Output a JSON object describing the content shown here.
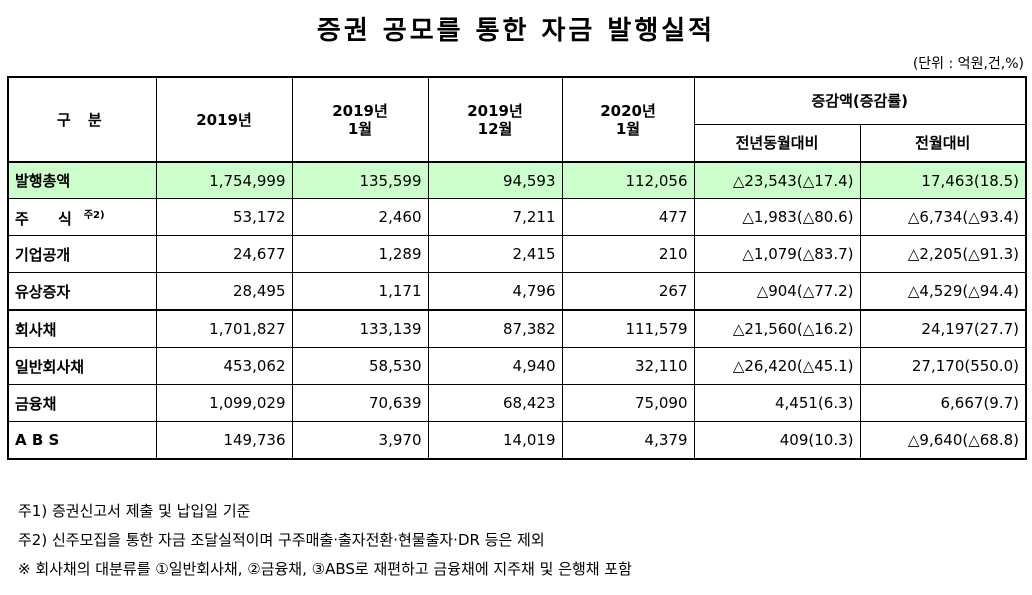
{
  "title": "증권 공모를 통한 자금 발행실적",
  "unit": "(단위 : 억원,건,%)",
  "header": {
    "category": "구  분",
    "col_2019": "2019년",
    "col_2019_1": "2019년\n1월",
    "col_2019_12": "2019년\n12월",
    "col_2020_1": "2020년\n1월",
    "change_group": "증감액(증감률)",
    "change_yoy": "전년동월대비",
    "change_mom": "전월대비"
  },
  "rows": [
    {
      "label": "발행총액",
      "v2019": "1,754,999",
      "v2019_1": "135,599",
      "v2019_12": "94,593",
      "v2020_1": "112,056",
      "yoy": "△23,543(△17.4)",
      "mom": "17,463(18.5)"
    },
    {
      "label": "주  식",
      "label_sup": "주2)",
      "v2019": "53,172",
      "v2019_1": "2,460",
      "v2019_12": "7,211",
      "v2020_1": "477",
      "yoy": "△1,983(△80.6)",
      "mom": "△6,734(△93.4)"
    },
    {
      "label": "기업공개",
      "v2019": "24,677",
      "v2019_1": "1,289",
      "v2019_12": "2,415",
      "v2020_1": "210",
      "yoy": "△1,079(△83.7)",
      "mom": "△2,205(△91.3)"
    },
    {
      "label": "유상증자",
      "v2019": "28,495",
      "v2019_1": "1,171",
      "v2019_12": "4,796",
      "v2020_1": "267",
      "yoy": "△904(△77.2)",
      "mom": "△4,529(△94.4)"
    },
    {
      "label": "회사채",
      "v2019": "1,701,827",
      "v2019_1": "133,139",
      "v2019_12": "87,382",
      "v2020_1": "111,579",
      "yoy": "△21,560(△16.2)",
      "mom": "24,197(27.7)"
    },
    {
      "label": "일반회사채",
      "v2019": "453,062",
      "v2019_1": "58,530",
      "v2019_12": "4,940",
      "v2020_1": "32,110",
      "yoy": "△26,420(△45.1)",
      "mom": "27,170(550.0)"
    },
    {
      "label": "금융채",
      "v2019": "1,099,029",
      "v2019_1": "70,639",
      "v2019_12": "68,423",
      "v2020_1": "75,090",
      "yoy": "4,451(6.3)",
      "mom": "6,667(9.7)"
    },
    {
      "label": "A B S",
      "v2019": "149,736",
      "v2019_1": "3,970",
      "v2019_12": "14,019",
      "v2020_1": "4,379",
      "yoy": "409(10.3)",
      "mom": "△9,640(△68.8)"
    }
  ],
  "notes": [
    "주1) 증권신고서 제출 및 납입일 기준",
    "주2) 신주모집을 통한 자금 조달실적이며 구주매출·출자전환·현물출자·DR 등은 제외",
    "※ 회사채의 대분류를 ①일반회사채, ②금융채, ③ABS로 재편하고 금융채에 지주채 및 은행채 포함"
  ]
}
